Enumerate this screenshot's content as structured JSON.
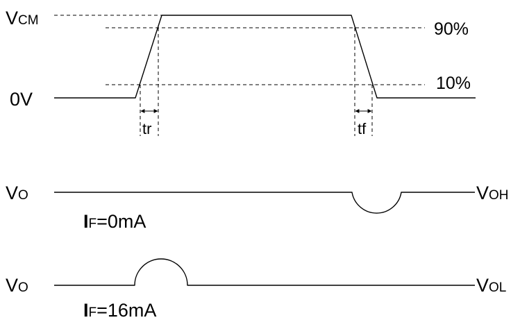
{
  "input_pulse": {
    "vcm_main": "V",
    "vcm_sub": "CM",
    "zero_volt": "0V",
    "level_high_pct": "90%",
    "level_low_pct": "10%",
    "rise_time_label": "tr",
    "fall_time_label": "tf"
  },
  "output_if_0": {
    "vo_main": "V",
    "vo_sub": "O",
    "voh_main": "V",
    "voh_sub": "OH",
    "if_main": "I",
    "if_sub": "F",
    "if_value": "=0mA"
  },
  "output_if_16": {
    "vo_main": "V",
    "vo_sub": "O",
    "vol_main": "V",
    "vol_sub": "OL",
    "if_main": "I",
    "if_sub": "F",
    "if_value": "=16mA"
  }
}
